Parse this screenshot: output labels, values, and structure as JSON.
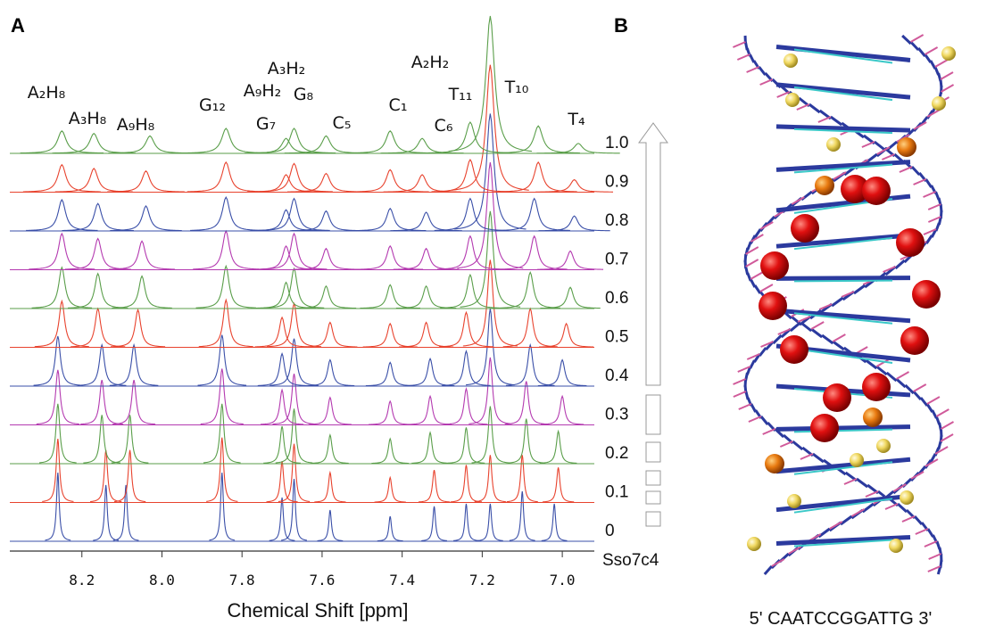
{
  "panel_labels": [
    "A",
    "B"
  ],
  "chart_data": {
    "type": "spectrum",
    "xlabel": "Chemical Shift [ppm]",
    "xlim": [
      8.38,
      6.92
    ],
    "xticks": [
      8.2,
      {
        "value": 8,
        "label": "8.0"
      },
      7.8,
      7.6,
      7.4,
      7.2,
      {
        "value": 7,
        "label": "7.0"
      }
    ],
    "stack_label": "Sso7c4",
    "annotations": [
      "A₂H₈",
      "A₃H₈",
      "A₉H₈",
      "G₁₂",
      "G₇",
      "A₉H₂",
      "A₃H₂",
      "G₈",
      "C₅",
      "C₁",
      "A₂H₂",
      "C₆",
      "T₁₁",
      "T₁₀",
      "T₄"
    ],
    "series": [
      {
        "name": "0",
        "color": "#3a4fa8",
        "x": [
          8.26,
          8.14,
          8.09,
          7.85,
          7.7,
          7.67,
          7.58,
          7.43,
          7.32,
          7.24,
          7.18,
          7.1,
          7.02
        ],
        "values": [
          55,
          45,
          45,
          55,
          35,
          50,
          25,
          20,
          28,
          30,
          30,
          40,
          30
        ]
      },
      {
        "name": "0.1",
        "color": "#e8432e",
        "x": [
          8.26,
          8.14,
          8.08,
          7.85,
          7.7,
          7.67,
          7.58,
          7.43,
          7.32,
          7.24,
          7.18,
          7.1,
          7.01
        ],
        "values": [
          51,
          42,
          42,
          52,
          33,
          47,
          24,
          20,
          26,
          30,
          38,
          38,
          28
        ]
      },
      {
        "name": "0.2",
        "color": "#5a9e4a",
        "x": [
          8.26,
          8.15,
          8.08,
          7.85,
          7.7,
          7.67,
          7.58,
          7.43,
          7.33,
          7.24,
          7.18,
          7.09,
          7.01
        ],
        "values": [
          48,
          39,
          39,
          48,
          30,
          44,
          23,
          20,
          25,
          29,
          46,
          36,
          26
        ]
      },
      {
        "name": "0.3",
        "color": "#b43ab0",
        "x": [
          8.26,
          8.15,
          8.07,
          7.85,
          7.7,
          7.67,
          7.58,
          7.43,
          7.33,
          7.24,
          7.18,
          7.09,
          7.0
        ],
        "values": [
          44,
          36,
          36,
          45,
          28,
          41,
          22,
          19,
          23,
          29,
          54,
          35,
          23
        ]
      },
      {
        "name": "0.4",
        "color": "#3a4fa8",
        "x": [
          8.26,
          8.15,
          8.07,
          7.85,
          7.7,
          7.67,
          7.58,
          7.43,
          7.33,
          7.24,
          7.18,
          7.08,
          7.0
        ],
        "values": [
          40,
          33,
          33,
          41,
          26,
          38,
          21,
          19,
          22,
          28,
          62,
          33,
          21
        ]
      },
      {
        "name": "0.5",
        "color": "#e8432e",
        "x": [
          8.25,
          8.16,
          8.06,
          7.84,
          7.7,
          7.67,
          7.58,
          7.43,
          7.34,
          7.24,
          7.18,
          7.08,
          6.99
        ],
        "values": [
          37,
          31,
          30,
          38,
          24,
          35,
          20,
          19,
          20,
          28,
          70,
          31,
          19
        ]
      },
      {
        "name": "0.6",
        "color": "#5a9e4a",
        "x": [
          8.25,
          8.16,
          8.05,
          7.84,
          7.69,
          7.67,
          7.59,
          7.43,
          7.34,
          7.23,
          7.18,
          7.08,
          6.98
        ],
        "values": [
          33,
          28,
          26,
          34,
          21,
          32,
          18,
          19,
          18,
          27,
          78,
          29,
          17
        ]
      },
      {
        "name": "0.7",
        "color": "#b43ab0",
        "x": [
          8.25,
          8.16,
          8.05,
          7.84,
          7.69,
          7.67,
          7.59,
          7.43,
          7.34,
          7.23,
          7.18,
          7.07,
          6.98
        ],
        "values": [
          29,
          25,
          23,
          31,
          19,
          29,
          17,
          19,
          17,
          27,
          86,
          27,
          15
        ]
      },
      {
        "name": "0.8",
        "color": "#3a4fa8",
        "x": [
          8.25,
          8.16,
          8.04,
          7.84,
          7.69,
          7.67,
          7.59,
          7.43,
          7.34,
          7.23,
          7.18,
          7.07,
          6.97
        ],
        "values": [
          25,
          22,
          20,
          27,
          17,
          26,
          16,
          18,
          15,
          26,
          94,
          26,
          12
        ]
      },
      {
        "name": "0.9",
        "color": "#e8432e",
        "x": [
          8.25,
          8.17,
          8.04,
          7.84,
          7.69,
          7.67,
          7.59,
          7.43,
          7.35,
          7.23,
          7.18,
          7.06,
          6.97
        ],
        "values": [
          22,
          19,
          17,
          24,
          14,
          23,
          15,
          18,
          14,
          26,
          102,
          24,
          10
        ]
      },
      {
        "name": "1.0",
        "color": "#5a9e4a",
        "x": [
          8.25,
          8.17,
          8.03,
          7.84,
          7.69,
          7.67,
          7.59,
          7.43,
          7.35,
          7.23,
          7.18,
          7.06,
          6.96
        ],
        "values": [
          18,
          16,
          14,
          20,
          12,
          20,
          14,
          18,
          12,
          25,
          110,
          22,
          8
        ]
      }
    ]
  },
  "structure": {
    "caption": "5' CAATCCGGATTG 3'"
  }
}
